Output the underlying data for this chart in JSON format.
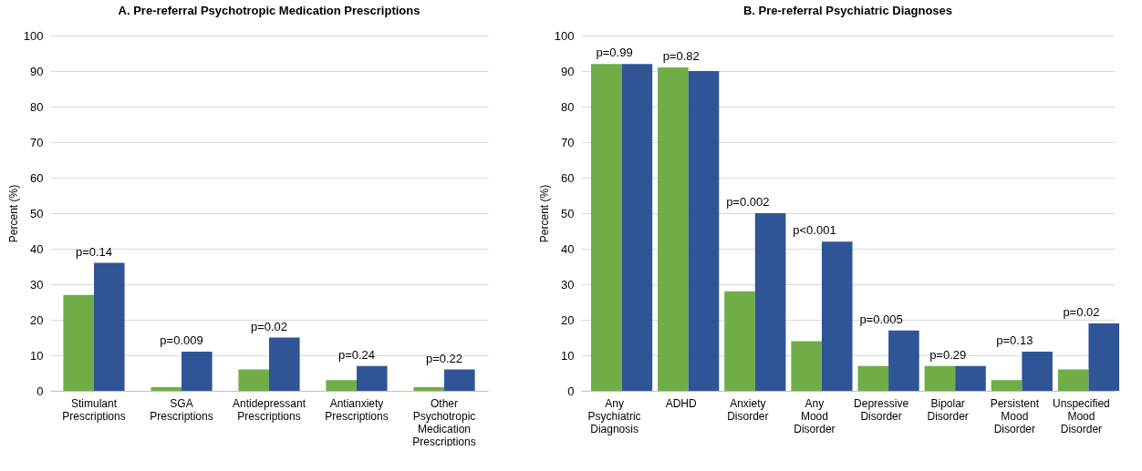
{
  "chart_data": [
    {
      "type": "bar",
      "title": "A. Pre-referral Psychotropic Medication Prescriptions",
      "ylabel": "Percent (%)",
      "categories": [
        "Stimulant Prescriptions",
        "SGA Prescriptions",
        "Antidepressant Prescriptions",
        "Antianxiety Prescriptions",
        "Other Psychotropic Medication Prescriptions"
      ],
      "series": [
        {
          "color": "#70ad47",
          "values": [
            27,
            1,
            6,
            3,
            1
          ]
        },
        {
          "color": "#2f5597",
          "values": [
            36,
            11,
            15,
            7,
            6
          ]
        }
      ],
      "annotations": [
        "p=0.14",
        "p=0.009",
        "p=0.02",
        "p=0.24",
        "p=0.22"
      ],
      "ylim": [
        0,
        100
      ],
      "yticks": [
        0,
        10,
        20,
        30,
        40,
        50,
        60,
        70,
        80,
        90,
        100
      ],
      "grid": "y",
      "legend": false
    },
    {
      "type": "bar",
      "title": "B. Pre-referral Psychiatric Diagnoses",
      "ylabel": "Percent (%)",
      "categories": [
        "Any Psychiatric Diagnosis",
        "ADHD",
        "Anxiety Disorder",
        "Any Mood Disorder",
        "Depressive Disorder",
        "Bipolar Disorder",
        "Persistent Mood Disorder",
        "Unspecified Mood Disorder"
      ],
      "series": [
        {
          "color": "#70ad47",
          "values": [
            92,
            91,
            28,
            14,
            7,
            7,
            3,
            6
          ]
        },
        {
          "color": "#2f5597",
          "values": [
            92,
            90,
            50,
            42,
            17,
            7,
            11,
            19
          ]
        }
      ],
      "annotations": [
        "p=0.99",
        "p=0.82",
        "p=0.002",
        "p<0.001",
        "p=0.005",
        "p=0.29",
        "p=0.13",
        "p=0.02"
      ],
      "ylim": [
        0,
        100
      ],
      "yticks": [
        0,
        10,
        20,
        30,
        40,
        50,
        60,
        70,
        80,
        90,
        100
      ],
      "grid": "y",
      "legend": false
    }
  ]
}
